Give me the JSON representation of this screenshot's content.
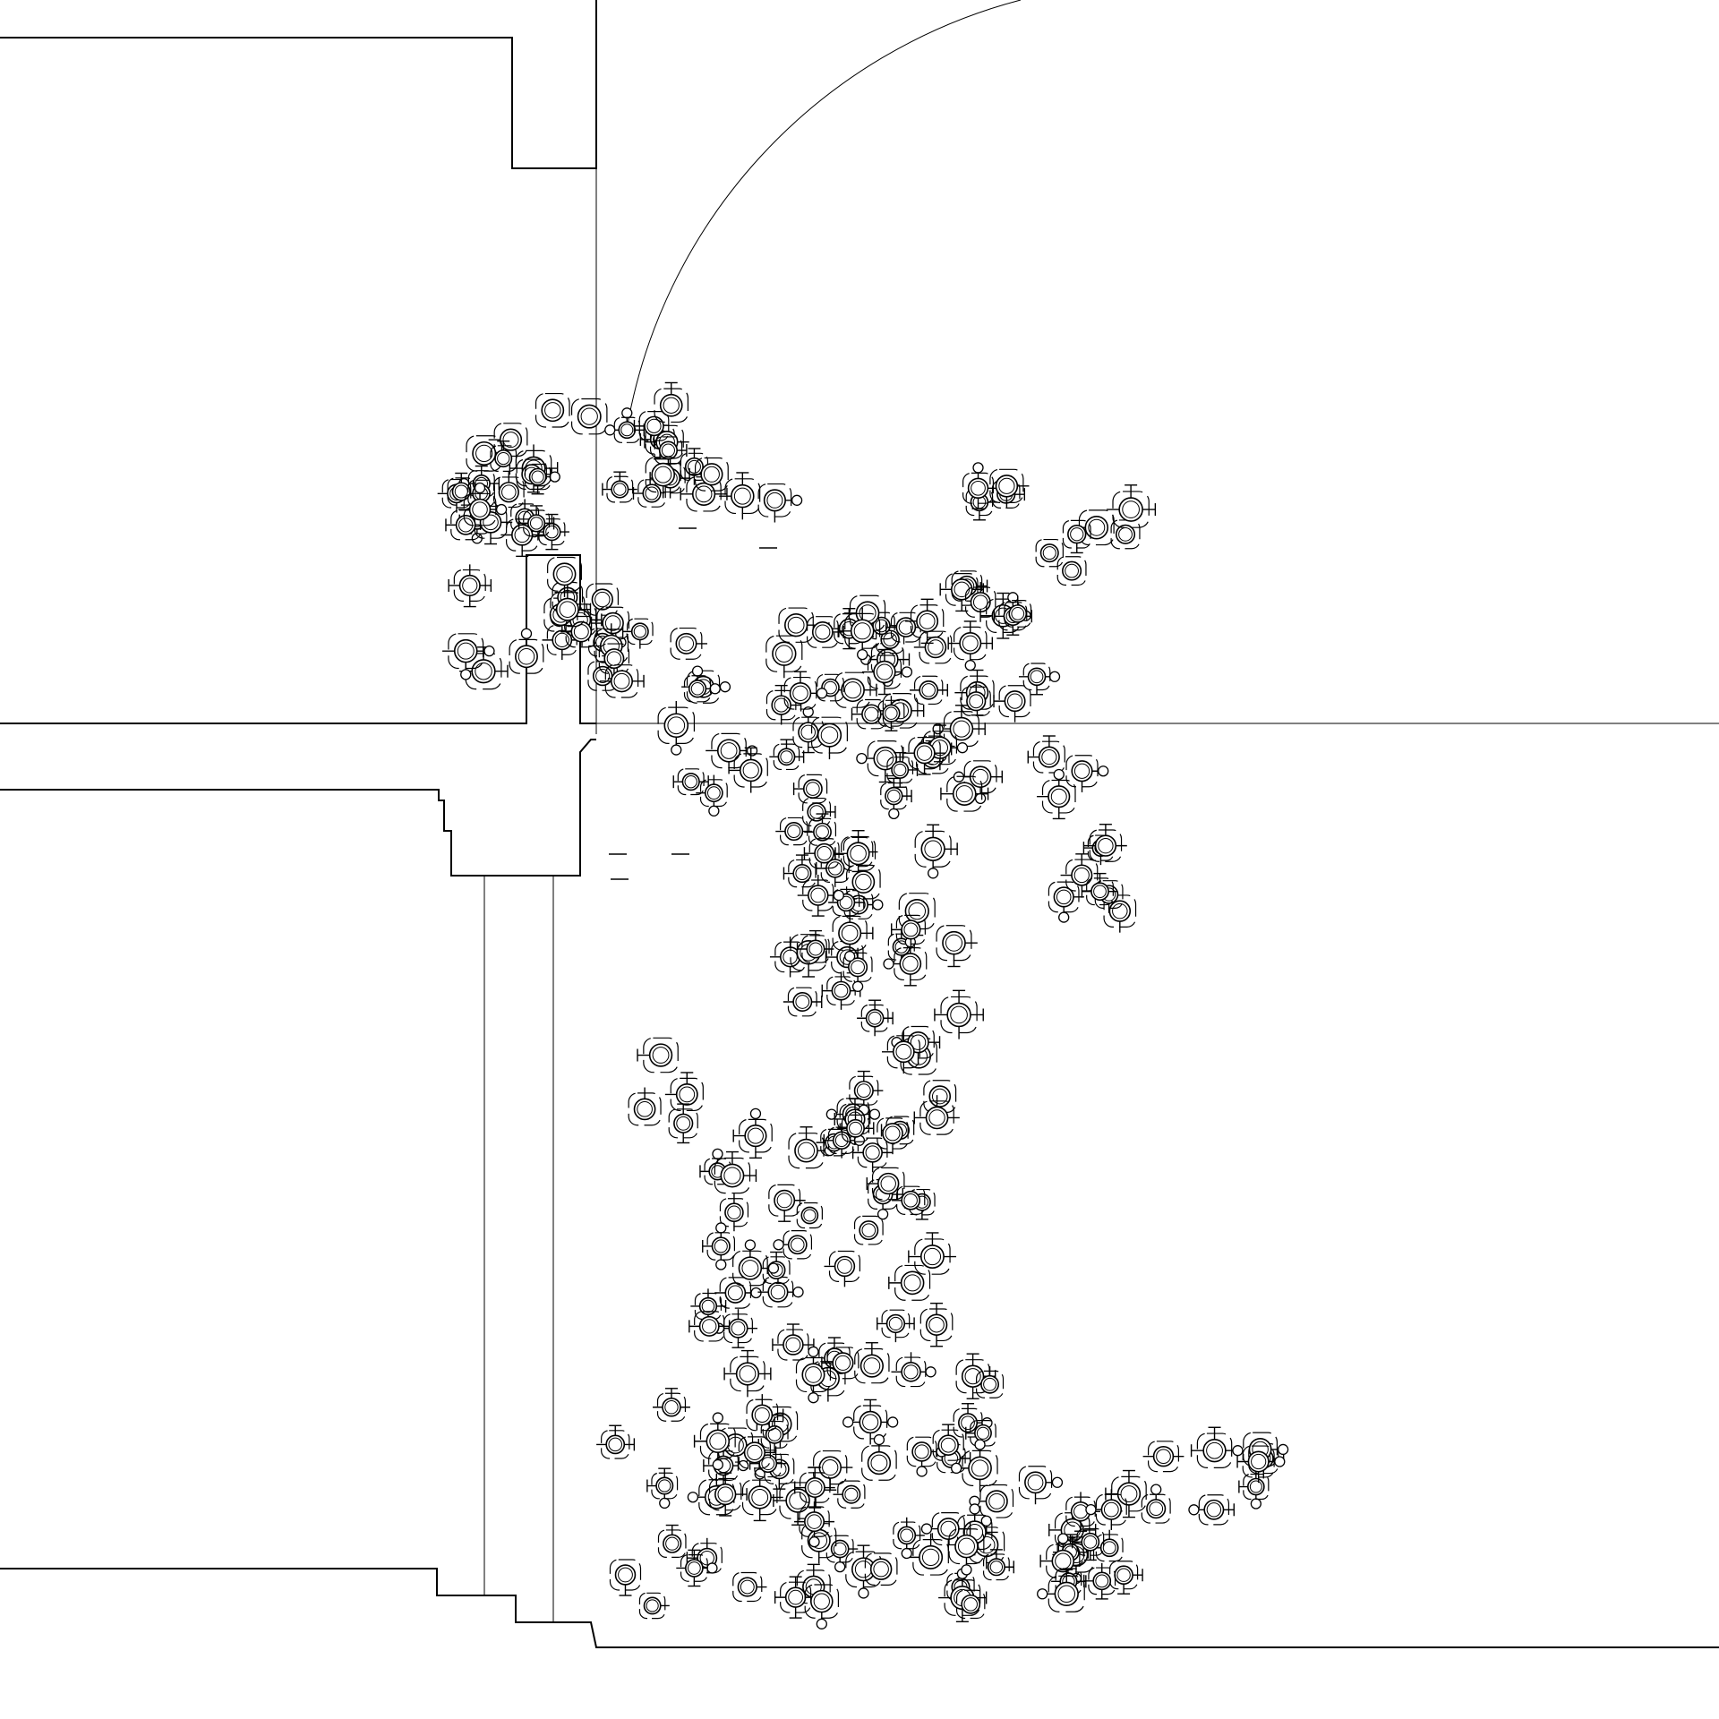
{
  "drawing": {
    "background": "#ffffff",
    "line_color": "#000000",
    "elements": [
      "building-walls",
      "door-swing-arc",
      "reference-lines",
      "lattice-modules"
    ],
    "module_icon": "circle-node-with-cross-arms",
    "module_count": 240,
    "random_seed": 7
  }
}
